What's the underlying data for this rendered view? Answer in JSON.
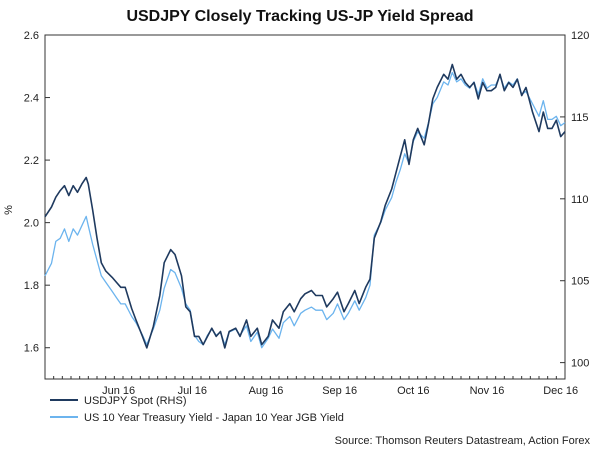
{
  "chart_data": {
    "type": "line",
    "title": "USDJPY Closely Tracking US-JP Yield Spread",
    "ylabel_left": "%",
    "ylabel_right": "",
    "x_tick_labels": [
      "Jun 16",
      "Jul 16",
      "Aug 16",
      "Sep 16",
      "Oct 16",
      "Nov 16",
      "Dec 16"
    ],
    "left_axis": {
      "ylim": [
        1.5,
        2.6
      ],
      "ticks": [
        "1.6",
        "1.8",
        "2.0",
        "2.2",
        "2.4",
        "2.6"
      ]
    },
    "right_axis": {
      "ylim": [
        99,
        120
      ],
      "ticks": [
        "100",
        "105",
        "110",
        "115",
        "120"
      ]
    },
    "x_range": [
      0,
      240
    ],
    "series": [
      {
        "name": "USDJPY Spot (RHS)",
        "axis": "right",
        "color": "#1f3a5f",
        "x": [
          0,
          3,
          5,
          7,
          9,
          11,
          13,
          15,
          17,
          19,
          20,
          22,
          24,
          26,
          28,
          31,
          33,
          35,
          37,
          40,
          42,
          45,
          47,
          50,
          53,
          55,
          58,
          60,
          63,
          65,
          67,
          69,
          71,
          73,
          75,
          77,
          79,
          81,
          83,
          85,
          88,
          90,
          93,
          95,
          98,
          100,
          103,
          105,
          108,
          110,
          113,
          115,
          118,
          120,
          123,
          125,
          128,
          130,
          133,
          135,
          138,
          140,
          143,
          145,
          148,
          150,
          152,
          155,
          157,
          160,
          162,
          164,
          166,
          168,
          170,
          172,
          175,
          177,
          179,
          181,
          184,
          186,
          188,
          190,
          192,
          194,
          196,
          198,
          200,
          202,
          204,
          206,
          208,
          210,
          212,
          214,
          216,
          218,
          220,
          222,
          225,
          228,
          230,
          232,
          234,
          236,
          238,
          240
        ],
        "values": [
          108.9,
          109.5,
          110.1,
          110.5,
          110.8,
          110.2,
          110.8,
          110.4,
          110.9,
          111.3,
          110.9,
          109.3,
          107.6,
          106.1,
          105.6,
          105.2,
          104.9,
          104.6,
          104.6,
          103.3,
          102.6,
          101.6,
          100.9,
          102.2,
          104.1,
          106.1,
          106.9,
          106.6,
          105.3,
          103.4,
          103.1,
          101.6,
          101.6,
          101.1,
          101.6,
          102.1,
          101.6,
          101.9,
          100.9,
          101.9,
          102.1,
          101.6,
          102.6,
          101.6,
          102.1,
          101.1,
          101.6,
          102.6,
          102.1,
          103.1,
          103.6,
          103.1,
          103.9,
          104.2,
          104.4,
          104.1,
          104.1,
          103.4,
          103.9,
          104.3,
          103.1,
          103.6,
          104.4,
          103.6,
          104.6,
          105.1,
          107.6,
          108.6,
          109.6,
          110.6,
          111.6,
          112.6,
          113.6,
          112.1,
          113.6,
          114.3,
          113.3,
          114.6,
          116.1,
          116.8,
          117.6,
          117.3,
          118.2,
          117.3,
          117.6,
          117.1,
          116.8,
          117.1,
          116.1,
          117.1,
          116.6,
          116.6,
          116.8,
          117.6,
          116.6,
          117.1,
          116.8,
          117.3,
          116.3,
          116.8,
          115.3,
          114.1,
          115.3,
          114.3,
          114.3,
          114.8,
          113.8,
          114.1
        ]
      },
      {
        "name": "US 10 Year Treasury Yield - Japan 10 Year JGB Yield",
        "axis": "left",
        "color": "#6cb4ee",
        "x": [
          0,
          3,
          5,
          7,
          9,
          11,
          13,
          15,
          17,
          19,
          20,
          22,
          24,
          26,
          28,
          31,
          33,
          35,
          37,
          40,
          42,
          45,
          47,
          50,
          53,
          55,
          58,
          60,
          63,
          65,
          67,
          69,
          71,
          73,
          75,
          77,
          79,
          81,
          83,
          85,
          88,
          90,
          93,
          95,
          98,
          100,
          103,
          105,
          108,
          110,
          113,
          115,
          118,
          120,
          123,
          125,
          128,
          130,
          133,
          135,
          138,
          140,
          143,
          145,
          148,
          150,
          152,
          155,
          157,
          160,
          162,
          164,
          166,
          168,
          170,
          172,
          175,
          177,
          179,
          181,
          184,
          186,
          188,
          190,
          192,
          194,
          196,
          198,
          200,
          202,
          204,
          206,
          208,
          210,
          212,
          214,
          216,
          218,
          220,
          222,
          225,
          228,
          230,
          232,
          234,
          236,
          238,
          240
        ],
        "values": [
          1.83,
          1.87,
          1.94,
          1.95,
          1.98,
          1.94,
          1.98,
          1.96,
          1.99,
          2.02,
          1.99,
          1.93,
          1.88,
          1.83,
          1.81,
          1.78,
          1.76,
          1.74,
          1.74,
          1.7,
          1.68,
          1.64,
          1.61,
          1.66,
          1.72,
          1.79,
          1.85,
          1.84,
          1.79,
          1.74,
          1.72,
          1.64,
          1.62,
          1.61,
          1.64,
          1.66,
          1.64,
          1.65,
          1.61,
          1.65,
          1.66,
          1.64,
          1.67,
          1.62,
          1.65,
          1.6,
          1.63,
          1.66,
          1.63,
          1.68,
          1.7,
          1.67,
          1.71,
          1.72,
          1.73,
          1.72,
          1.72,
          1.69,
          1.71,
          1.74,
          1.69,
          1.71,
          1.75,
          1.72,
          1.76,
          1.8,
          1.96,
          2.0,
          2.04,
          2.08,
          2.13,
          2.17,
          2.22,
          2.19,
          2.26,
          2.29,
          2.27,
          2.32,
          2.38,
          2.4,
          2.45,
          2.44,
          2.48,
          2.45,
          2.46,
          2.44,
          2.43,
          2.45,
          2.41,
          2.46,
          2.43,
          2.44,
          2.44,
          2.47,
          2.43,
          2.45,
          2.44,
          2.46,
          2.41,
          2.42,
          2.38,
          2.34,
          2.39,
          2.33,
          2.33,
          2.34,
          2.31,
          2.32
        ]
      }
    ],
    "legend_position": "bottom-left",
    "grid": false
  },
  "source_text": "Source: Thomson Reuters Datastream, Action Forex"
}
